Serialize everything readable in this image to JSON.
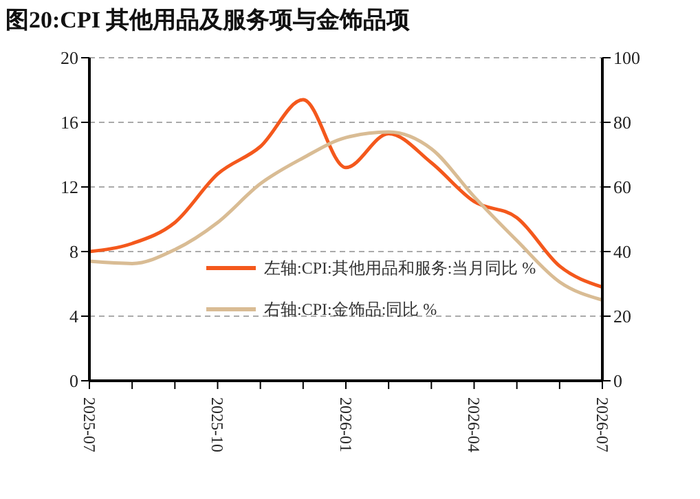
{
  "chart_data": {
    "type": "line",
    "title": "图20:CPI 其他用品及服务项与金饰品项",
    "categories": [
      "2025-07",
      null,
      null,
      "2025-10",
      null,
      null,
      "2026-01",
      null,
      null,
      "2026-04",
      null,
      null,
      "2026-07"
    ],
    "series": [
      {
        "name": "左轴:CPI:其他用品和服务:当月同比 %",
        "color": "#f4581c",
        "values": [
          8.0,
          8.5,
          9.8,
          12.8,
          14.5,
          17.4,
          13.2,
          15.3,
          13.5,
          11.1,
          10.1,
          7.1,
          5.8
        ]
      },
      {
        "name": "右轴:CPI:金饰品:同比 %",
        "color": "#d9bc94",
        "axis": "y2",
        "values": [
          37,
          36.3,
          40.6,
          49,
          61,
          69,
          75.3,
          77,
          71.8,
          57,
          43.4,
          30.6,
          25
        ]
      }
    ],
    "ylim": [
      0,
      20
    ],
    "yticks": [
      0,
      4,
      8,
      12,
      16,
      20
    ],
    "y2lim": [
      0,
      100
    ],
    "y2ticks": [
      0,
      20,
      40,
      60,
      80,
      100
    ],
    "grid": "y",
    "legend": "left",
    "marker": "none",
    "line_style": "solid"
  }
}
